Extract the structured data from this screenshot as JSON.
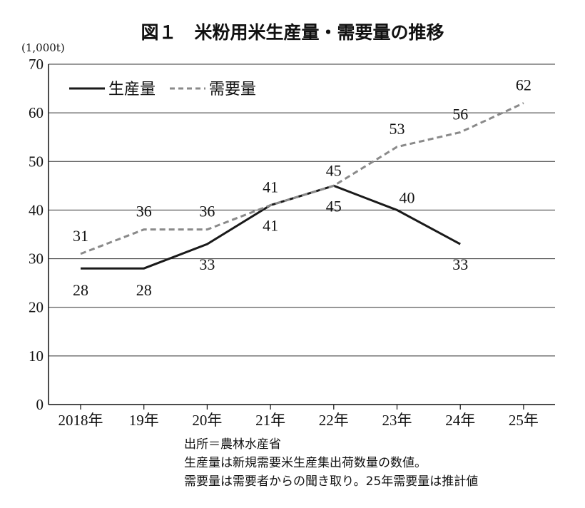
{
  "chart_data": {
    "type": "line",
    "title": "図１　米粉用米生産量・需要量の推移",
    "ylabel": "(1,000t)",
    "xlabel": "",
    "categories": [
      "2018年",
      "19年",
      "20年",
      "21年",
      "22年",
      "23年",
      "24年",
      "25年"
    ],
    "ylim": [
      0,
      70
    ],
    "yticks": [
      0,
      10,
      20,
      30,
      40,
      50,
      60,
      70
    ],
    "grid": true,
    "legend_position": "top-left",
    "series": [
      {
        "name": "生産量",
        "style": "solid",
        "color": "#1a1a1a",
        "values": [
          28,
          28,
          33,
          41,
          45,
          40,
          33,
          null
        ]
      },
      {
        "name": "需要量",
        "style": "dashed",
        "color": "#8a8a8a",
        "values": [
          31,
          36,
          36,
          41,
          45,
          53,
          56,
          62
        ]
      }
    ],
    "notes": [
      "出所＝農林水産省",
      "生産量は新規需要米生産集出荷数量の数値。",
      "需要量は需要者からの聞き取り。25年需要量は推計値"
    ]
  }
}
